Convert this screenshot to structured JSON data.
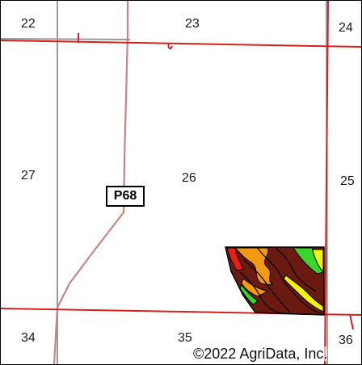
{
  "map": {
    "section_numbers": {
      "s22": "22",
      "s23": "23",
      "s24": "24",
      "s27": "27",
      "s26": "26",
      "s25": "25",
      "s34": "34",
      "s35": "35",
      "s36": "36"
    },
    "route_label": "P68",
    "copyright": "©2022 AgriData, Inc.",
    "colors": {
      "section_line": "#d42020",
      "road": "#9a9a9a",
      "highway": "#c98585",
      "soil_dark_brown": "#6b1a12",
      "soil_orange": "#f39a12",
      "soil_yellow": "#f2f20a",
      "soil_green": "#3ad42a",
      "soil_red": "#e81e12",
      "soil_boundary": "#000000"
    }
  }
}
